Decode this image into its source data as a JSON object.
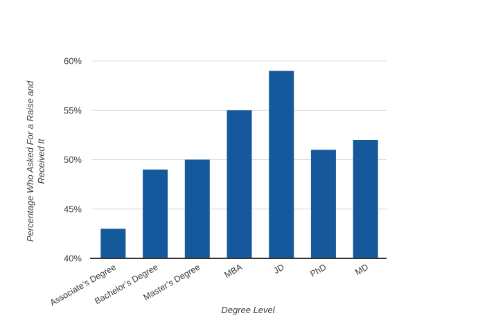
{
  "chart": {
    "bar_color": "#15599C",
    "grid_color": "#D9D9D9",
    "axis_line_color": "#333333",
    "tick_text_color": "#3D3D3D",
    "background_color": "#FFFFFF",
    "ylabel_line1": "Percentage Who Asked For a Raise and",
    "ylabel_line2": "Received It",
    "xlabel": "Degree Level"
  },
  "chart_data": {
    "type": "bar",
    "categories": [
      "Associate’s Degree",
      "Bachelor’s Degree",
      "Master’s Degree",
      "MBA",
      "JD",
      "PhD",
      "MD"
    ],
    "values": [
      43,
      49,
      50,
      55,
      59,
      51,
      52
    ],
    "title": "",
    "xlabel": "Degree Level",
    "ylabel": "Percentage Who Asked For a Raise and Received It",
    "ylim": [
      40,
      60
    ],
    "yticks": [
      40,
      45,
      50,
      55,
      60
    ],
    "ytick_suffix": "%",
    "grid": true,
    "legend": false,
    "bar_orientation": "vertical",
    "x_tick_rotation_deg": -30
  }
}
